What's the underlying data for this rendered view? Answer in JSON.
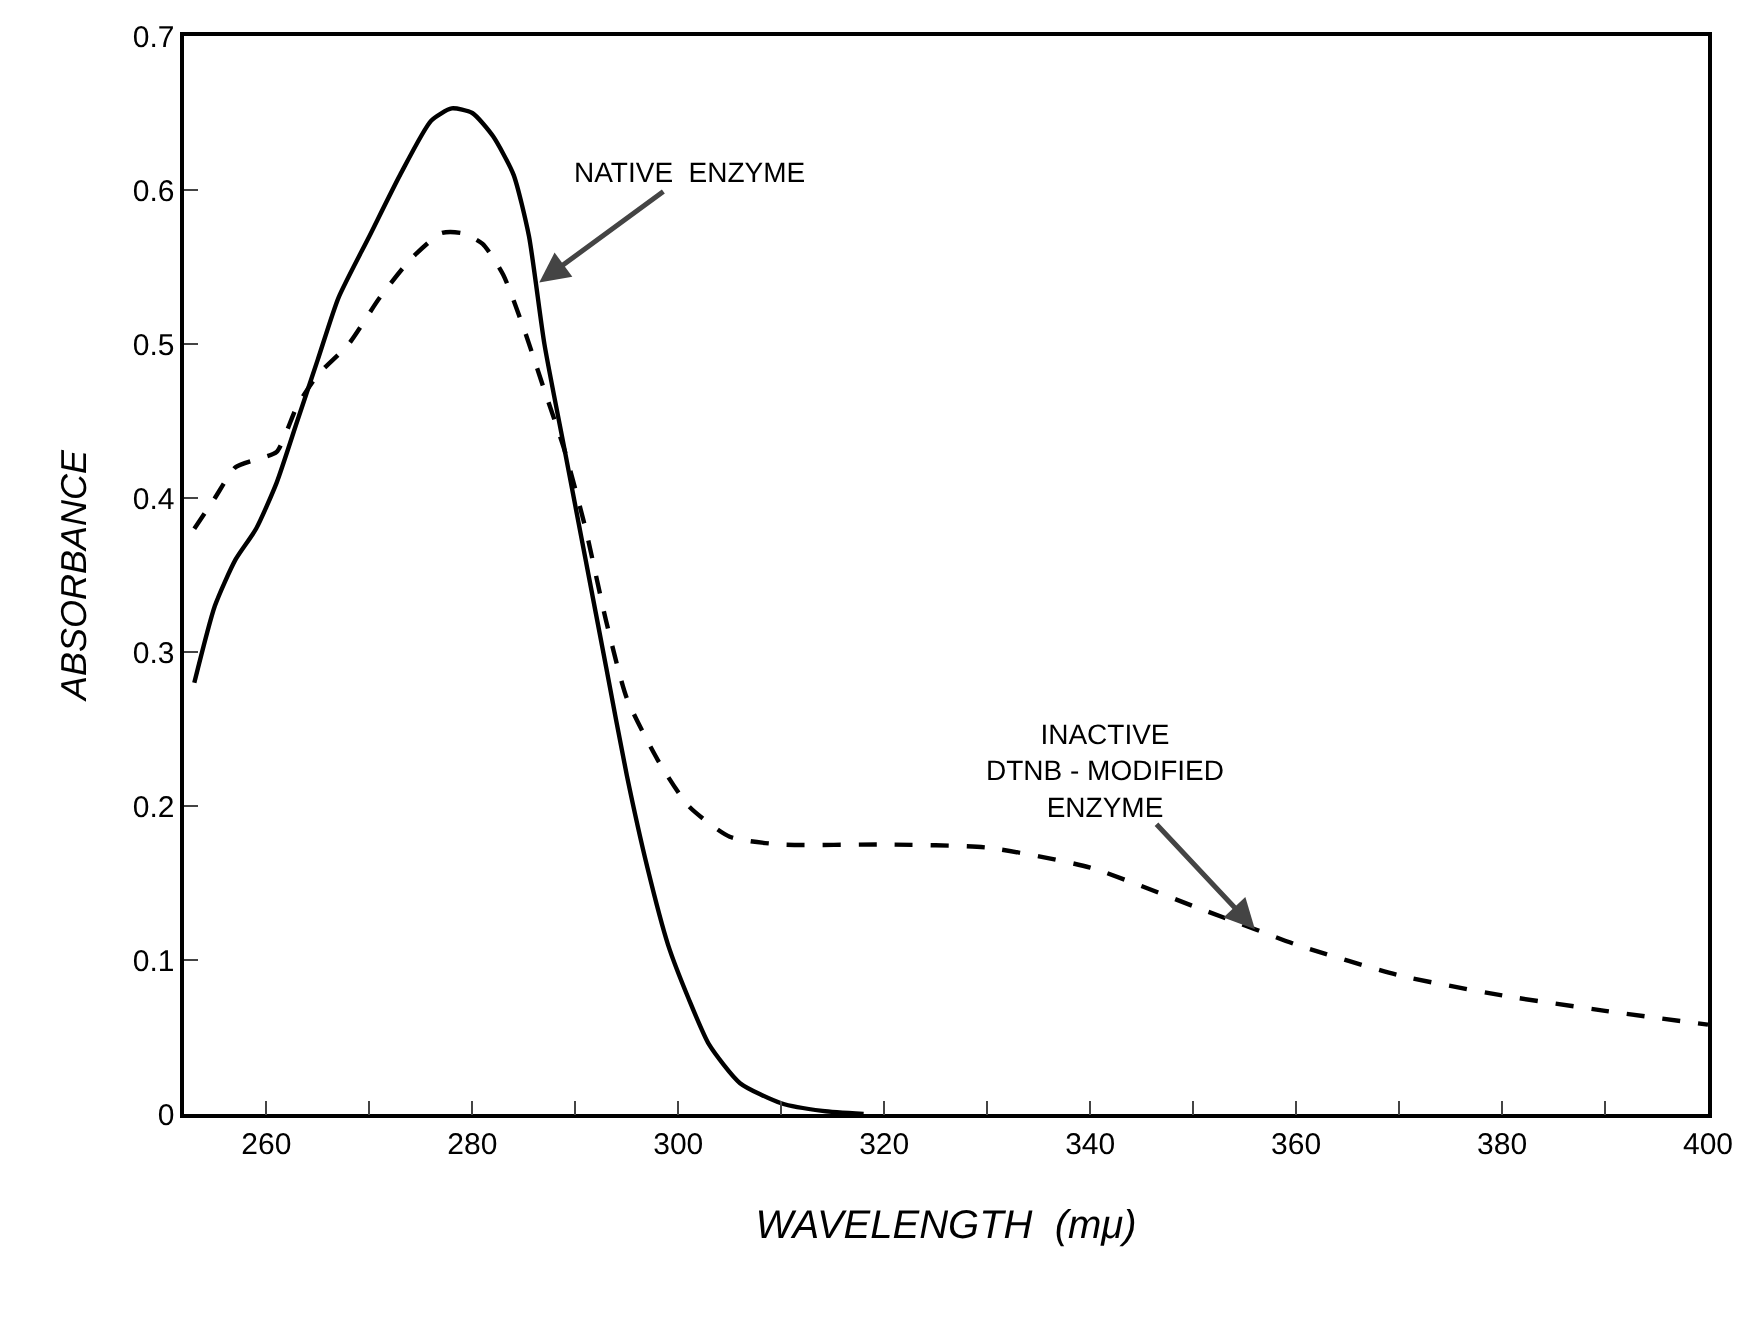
{
  "chart_data": {
    "type": "line",
    "xlabel": "WAVELENGTH  (mμ)",
    "ylabel": "ABSORBANCE",
    "xlim": [
      252,
      400
    ],
    "xticks": [
      260,
      {
        "value": 270,
        "label": null
      },
      280,
      {
        "value": 290,
        "label": null
      },
      300,
      {
        "value": 310,
        "label": null
      },
      320,
      {
        "value": 330,
        "label": null
      },
      340,
      {
        "value": 350,
        "label": null
      },
      360,
      {
        "value": 370,
        "label": null
      },
      380,
      {
        "value": 390,
        "label": null
      },
      400
    ],
    "ylim": [
      0,
      0.7
    ],
    "yticks": [
      {
        "value": 0,
        "label": "0"
      },
      0.1,
      0.2,
      0.3,
      0.4,
      0.5,
      0.6,
      0.7
    ],
    "grid": false,
    "marker": "none",
    "series": [
      {
        "color": "#000000",
        "line_style": "solid",
        "x": [
          253,
          255,
          257,
          259,
          261,
          263,
          265,
          267,
          270,
          273,
          276,
          278,
          280,
          282,
          284,
          285.5,
          287,
          289,
          291,
          293,
          295,
          297,
          299,
          301,
          303,
          306,
          310,
          314,
          318
        ],
        "values": [
          0.28,
          0.33,
          0.36,
          0.38,
          0.41,
          0.45,
          0.49,
          0.53,
          0.57,
          0.61,
          0.645,
          0.653,
          0.65,
          0.635,
          0.61,
          0.57,
          0.5,
          0.43,
          0.36,
          0.29,
          0.22,
          0.16,
          0.11,
          0.075,
          0.045,
          0.02,
          0.007,
          0.002,
          0
        ]
      },
      {
        "color": "#000000",
        "line_style": "dashed",
        "x": [
          253,
          255,
          257,
          259,
          261,
          263,
          265,
          268,
          271,
          274,
          277,
          279,
          281,
          283,
          285,
          287,
          289,
          291,
          293,
          295,
          298,
          301,
          305,
          310,
          320,
          330,
          340,
          350,
          356,
          360,
          370,
          380,
          390,
          400
        ],
        "values": [
          0.38,
          0.4,
          0.42,
          0.425,
          0.43,
          0.46,
          0.48,
          0.5,
          0.53,
          0.555,
          0.572,
          0.572,
          0.565,
          0.545,
          0.51,
          0.47,
          0.43,
          0.38,
          0.32,
          0.27,
          0.23,
          0.2,
          0.18,
          0.175,
          0.175,
          0.173,
          0.16,
          0.135,
          0.12,
          0.11,
          0.09,
          0.077,
          0.067,
          0.058
        ]
      }
    ],
    "annotations": [
      {
        "text": "NATIVE  ENZYME",
        "x": 286.5,
        "y": 0.54
      },
      {
        "text": "INACTIVE\nDTNB - MODIFIED\nENZYME",
        "x": 356,
        "y": 0.12
      }
    ]
  }
}
